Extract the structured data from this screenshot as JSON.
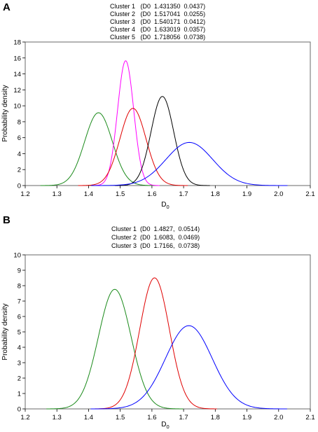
{
  "chart_data": [
    {
      "panel": "A",
      "type": "line",
      "xlabel": "D",
      "xlabel_sub": "0",
      "ylabel": "Probability density",
      "xlim": [
        1.2,
        2.1
      ],
      "ylim": [
        0,
        18
      ],
      "xticks": [
        "1.2",
        "1.3",
        "1.4",
        "1.5",
        "1.6",
        "1.7",
        "1.8",
        "1.9",
        "2.0",
        "2.1"
      ],
      "yticks": [
        "0",
        "2",
        "4",
        "6",
        "8",
        "10",
        "12",
        "14",
        "16",
        "18"
      ],
      "legend": [
        "Cluster 1   (D0  1.431350  0.0437)",
        "Cluster 2   (D0  1.517041  0.0255)",
        "Cluster 3   (D0  1.540171  0.0412)",
        "Cluster 4   (D0  1.633019  0.0357)",
        "Cluster 5   (D0  1.718056  0.0738)"
      ],
      "series": [
        {
          "mean": 1.43135,
          "sd": 0.0437,
          "color": "#1a8a1a"
        },
        {
          "mean": 1.517041,
          "sd": 0.0255,
          "color": "#ff00ff"
        },
        {
          "mean": 1.540171,
          "sd": 0.0412,
          "color": "#e00000"
        },
        {
          "mean": 1.633019,
          "sd": 0.0357,
          "color": "#000000"
        },
        {
          "mean": 1.718056,
          "sd": 0.0738,
          "color": "#0000ff"
        }
      ]
    },
    {
      "panel": "B",
      "type": "line",
      "xlabel": "D",
      "xlabel_sub": "0",
      "ylabel": "Probability density",
      "xlim": [
        1.2,
        2.1
      ],
      "ylim": [
        0,
        10
      ],
      "xticks": [
        "1.2",
        "1.3",
        "1.4",
        "1.5",
        "1.6",
        "1.7",
        "1.8",
        "1.9",
        "2.0",
        "2.1"
      ],
      "yticks": [
        "0",
        "1",
        "2",
        "3",
        "4",
        "5",
        "6",
        "7",
        "8",
        "9",
        "10"
      ],
      "legend": [
        "Cluster 1  (D0  1.4827,  0.0514)",
        "Cluster 2  (D0  1.6083,  0.0469)",
        "Cluster 3  (D0  1.7166,  0.0738)"
      ],
      "series": [
        {
          "mean": 1.4827,
          "sd": 0.0514,
          "color": "#1a8a1a"
        },
        {
          "mean": 1.6083,
          "sd": 0.0469,
          "color": "#e00000"
        },
        {
          "mean": 1.7166,
          "sd": 0.0738,
          "color": "#0000ff"
        }
      ]
    }
  ]
}
